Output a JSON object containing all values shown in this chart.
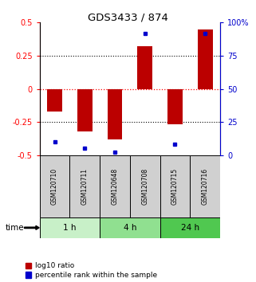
{
  "title": "GDS3433 / 874",
  "samples": [
    "GSM120710",
    "GSM120711",
    "GSM120648",
    "GSM120708",
    "GSM120715",
    "GSM120716"
  ],
  "log10_ratio": [
    -0.17,
    -0.32,
    -0.38,
    0.32,
    -0.27,
    0.45
  ],
  "percentile_rank": [
    10,
    5,
    2,
    92,
    8,
    92
  ],
  "time_groups": [
    {
      "label": "1 h",
      "start": 0,
      "end": 2,
      "color": "#c8f0c8"
    },
    {
      "label": "4 h",
      "start": 2,
      "end": 4,
      "color": "#90e090"
    },
    {
      "label": "24 h",
      "start": 4,
      "end": 6,
      "color": "#50c850"
    }
  ],
  "bar_color": "#bb0000",
  "dot_color": "#0000cc",
  "ylim": [
    -0.5,
    0.5
  ],
  "y2lim": [
    0,
    100
  ],
  "yticks": [
    -0.5,
    -0.25,
    0,
    0.25,
    0.5
  ],
  "y2ticks": [
    0,
    25,
    50,
    75,
    100
  ],
  "hlines": [
    -0.25,
    0.25
  ],
  "legend_bar_label": "log10 ratio",
  "legend_dot_label": "percentile rank within the sample"
}
